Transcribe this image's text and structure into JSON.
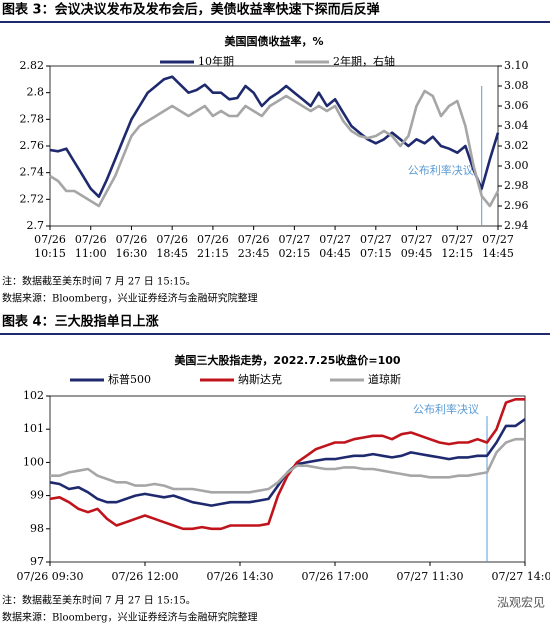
{
  "headers": [
    "图表 3：会议决议发布及发布会后，美债收益率快速下探而后反弹",
    "图表 4：三大股指单日上涨"
  ],
  "notes": [
    {
      "note": "注：数据截至美东时间 7 月 27 日 15:15。",
      "source": "数据来源：Bloomberg，兴业证券经济与金融研究院整理"
    },
    {
      "note": "注：数据截至美东时间 7 月 27 日 15:15。",
      "source": "数据来源：Bloomberg，兴业证券经济与金融研究院整理"
    }
  ],
  "watermark": "泓观宏见",
  "chart_data": [
    {
      "type": "line",
      "title": "美国国债收益率，%",
      "legend": "top",
      "categories": [
        "07/26 10:15",
        null,
        null,
        null,
        null,
        "07/26 11:00",
        null,
        null,
        null,
        null,
        "07/26 16:30",
        null,
        null,
        null,
        null,
        "07/26 18:45",
        null,
        null,
        null,
        null,
        "07/26 21:15",
        null,
        null,
        null,
        null,
        "07/26 23:45",
        null,
        null,
        null,
        null,
        "07/27 02:15",
        null,
        null,
        null,
        null,
        "07/27 04:45",
        null,
        null,
        null,
        null,
        "07/27 07:15",
        null,
        null,
        null,
        null,
        "07/27 09:45",
        null,
        null,
        null,
        null,
        "07/27 12:15",
        null,
        null,
        null,
        null,
        "07/27 14:45"
      ],
      "series": [
        {
          "name": "10年期",
          "color": "#1f2a6e",
          "values": [
            2.757,
            2.756,
            2.758,
            2.748,
            2.738,
            2.728,
            2.722,
            2.735,
            2.75,
            2.765,
            2.78,
            2.79,
            2.8,
            2.805,
            2.81,
            2.812,
            2.806,
            2.8,
            2.802,
            2.806,
            2.8,
            2.8,
            2.795,
            2.796,
            2.805,
            2.8,
            2.79,
            2.796,
            2.8,
            2.805,
            2.8,
            2.795,
            2.79,
            2.8,
            2.79,
            2.795,
            2.785,
            2.775,
            2.77,
            2.765,
            2.762,
            2.765,
            2.77,
            2.765,
            2.76,
            2.765,
            2.762,
            2.767,
            2.76,
            2.758,
            2.755,
            2.76,
            2.742,
            2.728,
            2.75,
            2.77
          ]
        },
        {
          "name": "2年期，右轴",
          "color": "#a6a6a6",
          "axis": "y2",
          "values": [
            2.99,
            2.985,
            2.975,
            2.975,
            2.97,
            2.965,
            2.96,
            2.975,
            2.99,
            3.01,
            3.03,
            3.04,
            3.045,
            3.05,
            3.055,
            3.06,
            3.055,
            3.05,
            3.055,
            3.06,
            3.05,
            3.055,
            3.05,
            3.05,
            3.06,
            3.055,
            3.05,
            3.06,
            3.065,
            3.07,
            3.065,
            3.06,
            3.055,
            3.06,
            3.055,
            3.06,
            3.045,
            3.035,
            3.03,
            3.028,
            3.03,
            3.035,
            3.03,
            3.02,
            3.03,
            3.06,
            3.075,
            3.07,
            3.05,
            3.06,
            3.065,
            3.04,
            3.0,
            2.97,
            2.96,
            2.975
          ]
        }
      ],
      "ylim": [
        2.7,
        2.82
      ],
      "yticks": [
        2.7,
        2.72,
        2.74,
        2.76,
        2.78,
        2.8,
        2.82
      ],
      "y2lim": [
        2.94,
        3.1
      ],
      "y2ticks": [
        2.94,
        2.96,
        2.98,
        {
          "value": 3,
          "label": "3.00"
        },
        3.02,
        3.04,
        3.06,
        3.08,
        {
          "value": 3.1,
          "label": "3.10"
        }
      ],
      "annotation": {
        "label": "公布利率决议",
        "at": 53,
        "color": "#5b9bd5"
      }
    },
    {
      "type": "line",
      "title": "美国三大股指走势，2022.7.25收盘价=100",
      "legend": "top-left",
      "categories": [
        "07/26 09:30",
        null,
        null,
        null,
        null,
        null,
        null,
        null,
        null,
        null,
        "07/26 12:00",
        null,
        null,
        null,
        null,
        null,
        null,
        null,
        null,
        null,
        "07/26 14:30",
        null,
        null,
        null,
        null,
        null,
        null,
        null,
        null,
        null,
        "07/26 17:00",
        null,
        null,
        null,
        null,
        null,
        null,
        null,
        null,
        null,
        "07/27 11:30",
        null,
        null,
        null,
        null,
        null,
        null,
        null,
        null,
        null,
        "07/27 14:00"
      ],
      "series": [
        {
          "name": "标普500",
          "color": "#1f2a6e",
          "values": [
            99.4,
            99.35,
            99.2,
            99.25,
            99.1,
            98.9,
            98.8,
            98.8,
            98.9,
            99.0,
            99.05,
            99.0,
            98.95,
            99.0,
            98.9,
            98.8,
            98.75,
            98.7,
            98.75,
            98.8,
            98.8,
            98.8,
            98.85,
            98.9,
            99.3,
            99.7,
            99.95,
            100.0,
            100.05,
            100.1,
            100.1,
            100.15,
            100.2,
            100.2,
            100.25,
            100.2,
            100.15,
            100.2,
            100.3,
            100.25,
            100.2,
            100.15,
            100.1,
            100.15,
            100.15,
            100.2,
            100.2,
            100.6,
            101.1,
            101.1,
            101.3
          ]
        },
        {
          "name": "纳斯达克",
          "color": "#c0141c",
          "values": [
            98.9,
            98.95,
            98.8,
            98.6,
            98.5,
            98.6,
            98.3,
            98.1,
            98.2,
            98.3,
            98.4,
            98.3,
            98.2,
            98.1,
            98.0,
            98.0,
            98.05,
            98.0,
            98.0,
            98.1,
            98.1,
            98.1,
            98.1,
            98.15,
            99.0,
            99.6,
            100.0,
            100.2,
            100.4,
            100.5,
            100.6,
            100.6,
            100.7,
            100.75,
            100.8,
            100.8,
            100.7,
            100.85,
            100.9,
            100.8,
            100.7,
            100.6,
            100.55,
            100.6,
            100.6,
            100.7,
            100.6,
            101.0,
            101.8,
            101.9,
            101.9
          ]
        },
        {
          "name": "道琼斯",
          "color": "#a6a6a6",
          "values": [
            99.6,
            99.6,
            99.7,
            99.75,
            99.8,
            99.6,
            99.5,
            99.4,
            99.4,
            99.3,
            99.3,
            99.35,
            99.3,
            99.2,
            99.2,
            99.2,
            99.15,
            99.1,
            99.1,
            99.1,
            99.1,
            99.1,
            99.15,
            99.2,
            99.4,
            99.7,
            99.9,
            99.9,
            99.85,
            99.8,
            99.8,
            99.85,
            99.85,
            99.8,
            99.8,
            99.75,
            99.7,
            99.65,
            99.6,
            99.6,
            99.55,
            99.55,
            99.55,
            99.6,
            99.6,
            99.65,
            99.7,
            100.3,
            100.6,
            100.7,
            100.7
          ]
        }
      ],
      "ylim": [
        97,
        102
      ],
      "yticks": [
        97,
        98,
        99,
        100,
        101,
        102
      ],
      "annotation": {
        "label": "公布利率决议",
        "at": 46,
        "color": "#5b9bd5"
      }
    }
  ]
}
